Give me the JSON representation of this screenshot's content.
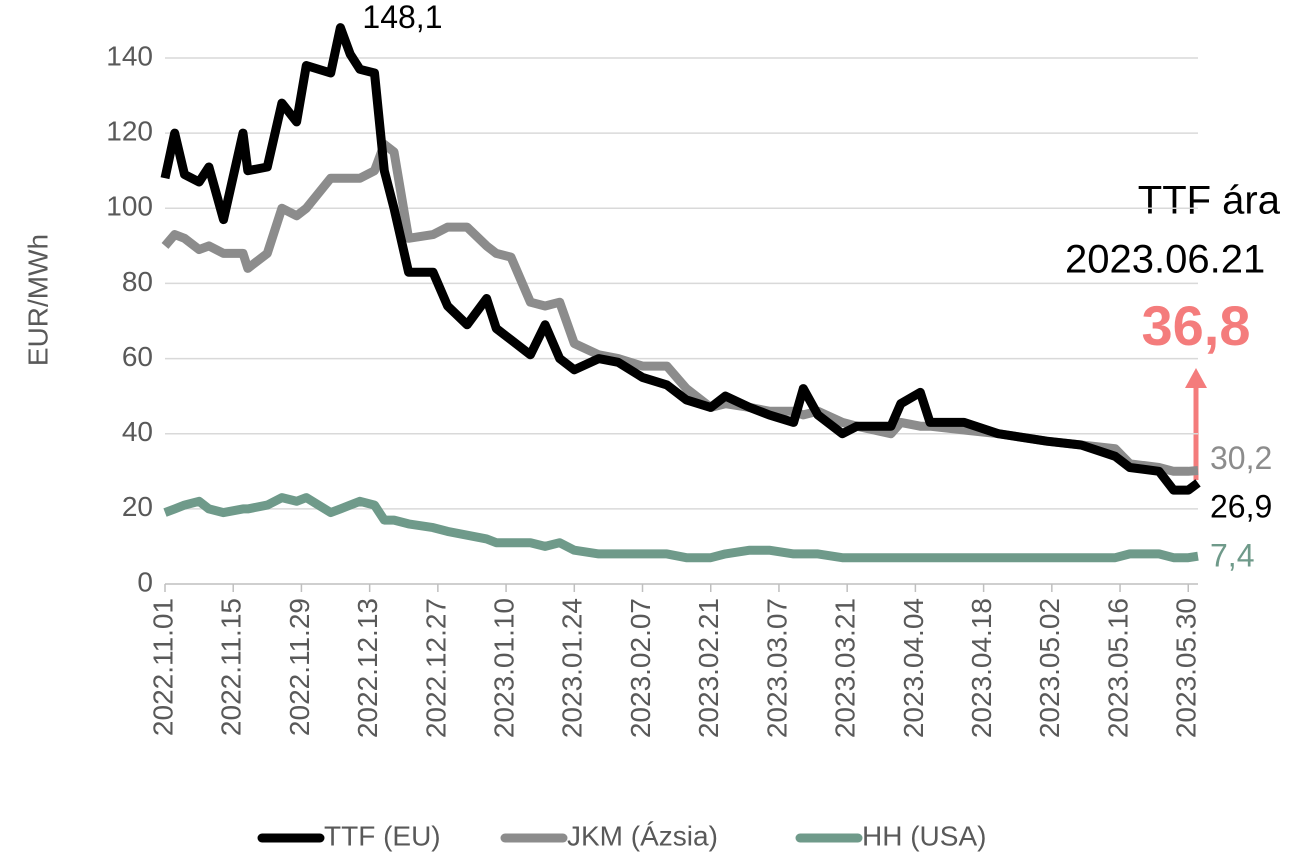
{
  "chart_data": {
    "type": "line",
    "y_label": "EUR/MWh",
    "x": [
      "2022.11.01",
      "2022.11.03",
      "2022.11.05",
      "2022.11.08",
      "2022.11.10",
      "2022.11.13",
      "2022.11.17",
      "2022.11.18",
      "2022.11.22",
      "2022.11.25",
      "2022.11.28",
      "2022.11.30",
      "2022.12.05",
      "2022.12.07",
      "2022.12.09",
      "2022.12.11",
      "2022.12.14",
      "2022.12.16",
      "2022.12.18",
      "2022.12.21",
      "2022.12.26",
      "2022.12.29",
      "2023.01.02",
      "2023.01.06",
      "2023.01.08",
      "2023.01.11",
      "2023.01.15",
      "2023.01.18",
      "2023.01.21",
      "2023.01.24",
      "2023.01.29",
      "2023.02.02",
      "2023.02.07",
      "2023.02.12",
      "2023.02.16",
      "2023.02.21",
      "2023.02.24",
      "2023.03.01",
      "2023.03.05",
      "2023.03.10",
      "2023.03.12",
      "2023.03.15",
      "2023.03.20",
      "2023.03.23",
      "2023.03.30",
      "2023.04.01",
      "2023.04.05",
      "2023.04.07",
      "2023.04.14",
      "2023.04.21",
      "2023.05.01",
      "2023.05.08",
      "2023.05.15",
      "2023.05.18",
      "2023.05.24",
      "2023.05.27",
      "2023.05.30",
      "2023.06.01"
    ],
    "series": [
      {
        "name": "TTF (EU)",
        "color": "#000000",
        "values": [
          108,
          120,
          109,
          107,
          111,
          97,
          120,
          110,
          111,
          128,
          123,
          138,
          136,
          148.1,
          141,
          137,
          136,
          110,
          100,
          83,
          83,
          74,
          69,
          76,
          68,
          65,
          61,
          69,
          60,
          57,
          60,
          59,
          55,
          53,
          49,
          47,
          50,
          47,
          45,
          43,
          52,
          45,
          40,
          42,
          42,
          48,
          51,
          43,
          43,
          40,
          38,
          37,
          34,
          31,
          30,
          25,
          25,
          26.9
        ],
        "value_labels": [
          null,
          null,
          null,
          null,
          null,
          null,
          null,
          null,
          null,
          null,
          null,
          null,
          null,
          "148,1",
          null,
          null,
          null,
          null,
          null,
          null,
          null,
          null,
          null,
          null,
          null,
          null,
          null,
          null,
          null,
          null,
          null,
          null,
          null,
          null,
          null,
          null,
          null,
          null,
          null,
          null,
          null,
          null,
          null,
          null,
          null,
          null,
          null,
          null,
          null,
          null,
          null,
          null,
          null,
          null,
          null,
          null,
          null,
          "26,9"
        ]
      },
      {
        "name": "JKM (Ázsia)",
        "color": "#8c8c8c",
        "values": [
          90,
          93,
          92,
          89,
          90,
          88,
          88,
          84,
          88,
          100,
          98,
          100,
          108,
          108,
          108,
          108,
          110,
          117,
          115,
          92,
          93,
          95,
          95,
          90,
          88,
          87,
          75,
          74,
          75,
          64,
          61,
          60,
          58,
          58,
          52,
          47,
          48,
          47,
          46,
          46,
          45,
          46,
          43,
          42,
          40,
          43,
          42,
          42,
          41,
          40,
          38,
          37,
          36,
          32,
          31,
          30,
          30,
          30.2
        ],
        "value_labels": [
          null,
          null,
          null,
          null,
          null,
          null,
          null,
          null,
          null,
          null,
          null,
          null,
          null,
          null,
          null,
          null,
          null,
          null,
          null,
          null,
          null,
          null,
          null,
          null,
          null,
          null,
          null,
          null,
          null,
          null,
          null,
          null,
          null,
          null,
          null,
          null,
          null,
          null,
          null,
          null,
          null,
          null,
          null,
          null,
          null,
          null,
          null,
          null,
          null,
          null,
          null,
          null,
          null,
          null,
          null,
          null,
          null,
          "30,2"
        ]
      },
      {
        "name": "HH (USA)",
        "color": "#6f9a8a",
        "values": [
          19,
          20,
          21,
          22,
          20,
          19,
          20,
          20,
          21,
          23,
          22,
          23,
          19,
          20,
          21,
          22,
          21,
          17,
          17,
          16,
          15,
          14,
          13,
          12,
          11,
          11,
          11,
          10,
          11,
          9,
          8,
          8,
          8,
          8,
          7,
          7,
          8,
          9,
          9,
          8,
          8,
          8,
          7,
          7,
          7,
          7,
          7,
          7,
          7,
          7,
          7,
          7,
          7,
          8,
          8,
          7,
          7,
          7.4
        ],
        "value_labels": [
          null,
          null,
          null,
          null,
          null,
          null,
          null,
          null,
          null,
          null,
          null,
          null,
          null,
          null,
          null,
          null,
          null,
          null,
          null,
          null,
          null,
          null,
          null,
          null,
          null,
          null,
          null,
          null,
          null,
          null,
          null,
          null,
          null,
          null,
          null,
          null,
          null,
          null,
          null,
          null,
          null,
          null,
          null,
          null,
          null,
          null,
          null,
          null,
          null,
          null,
          null,
          null,
          null,
          null,
          null,
          null,
          null,
          "7,4"
        ]
      }
    ],
    "xlim": [
      "2022.11.01",
      "2023.06.01"
    ],
    "xticks": [
      "2022.11.01",
      "2022.11.15",
      "2022.11.29",
      "2022.12.13",
      "2022.12.27",
      "2023.01.10",
      "2023.01.24",
      "2023.02.07",
      "2023.02.21",
      "2023.03.07",
      "2023.03.21",
      "2023.04.04",
      "2023.04.18",
      "2023.05.02",
      "2023.05.16",
      "2023.05.30"
    ],
    "ylim": [
      0,
      140
    ],
    "yticks": [
      0,
      20,
      40,
      60,
      80,
      100,
      120,
      140
    ],
    "grid": true,
    "legend": "bottom",
    "callout": {
      "line1": "TTF ára",
      "line2": "2023.06.21",
      "value_label": "36,8",
      "color": "#f47c7c"
    }
  }
}
